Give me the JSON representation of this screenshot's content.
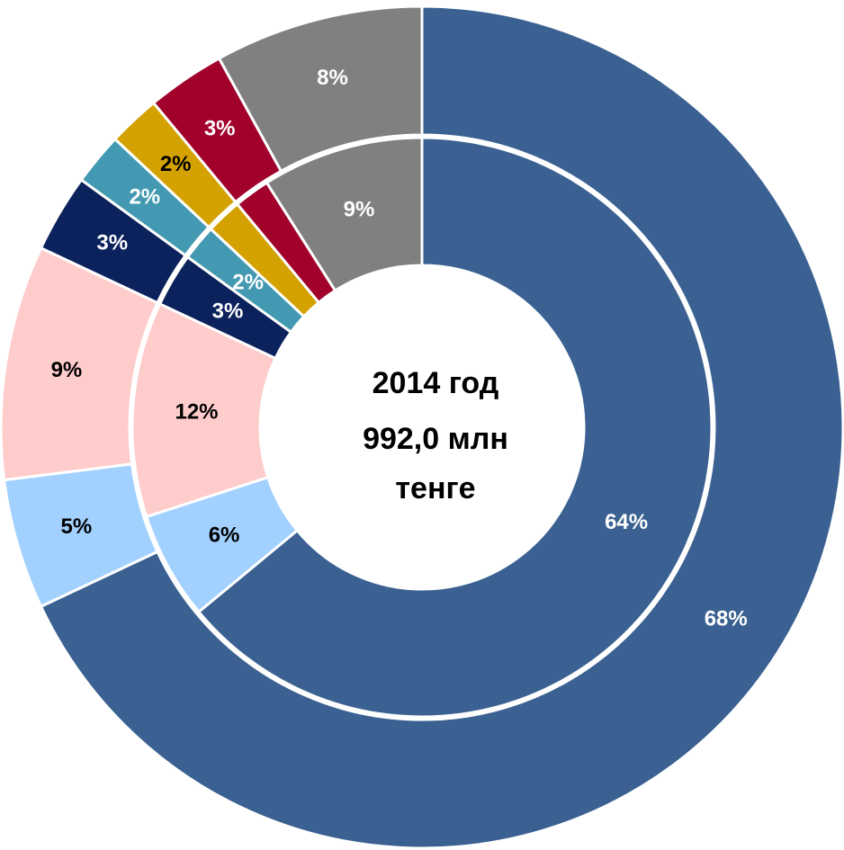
{
  "chart_data": {
    "type": "donut",
    "center_text": [
      "2014 год",
      "992,0 млн",
      "тенге"
    ],
    "colors": [
      "#3a6191",
      "#a3d1ff",
      "#ffcccc",
      "#0b225d",
      "#4399b1",
      "#d3a100",
      "#a1012b",
      "#808080"
    ],
    "series": [
      {
        "values": [
          68,
          5,
          9,
          3,
          2,
          2,
          3,
          8
        ],
        "value_labels": [
          "68%",
          "5%",
          "9%",
          "3%",
          "2%",
          "2%",
          "3%",
          "8%"
        ]
      },
      {
        "values": [
          64,
          6,
          12,
          3,
          2,
          2,
          2,
          9
        ],
        "value_labels": [
          "64%",
          "6%",
          "12%",
          "3%",
          "2%",
          null,
          null,
          "9%"
        ]
      }
    ]
  }
}
